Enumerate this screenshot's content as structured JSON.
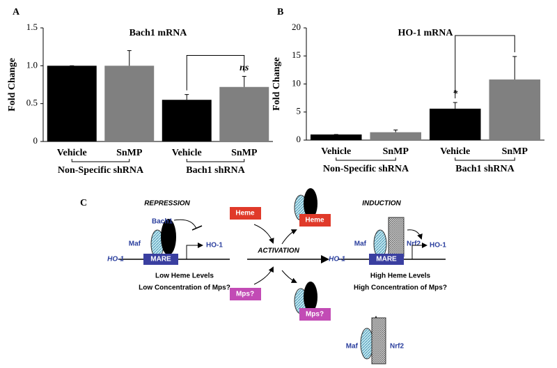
{
  "chart_data": [
    {
      "type": "bar",
      "panel": "A",
      "title": "Bach1 mRNA",
      "y_label": "Fold Change",
      "categories": [
        "Vehicle",
        "SnMP",
        "Vehicle",
        "SnMP"
      ],
      "groups": [
        "Non-Specific shRNA",
        "Bach1 shRNA"
      ],
      "values": [
        1.0,
        1.0,
        0.55,
        0.72
      ],
      "errors": [
        0,
        0.2,
        0.07,
        0.14
      ],
      "colors": [
        "#000000",
        "#808080",
        "#000000",
        "#808080"
      ],
      "annotation": "ns",
      "ylim": [
        0,
        1.5
      ],
      "yticks": [
        0,
        0.5,
        {
          "value": 1,
          "label": "1.0"
        },
        1.5
      ]
    },
    {
      "type": "bar",
      "panel": "B",
      "title": "HO-1 mRNA",
      "y_label": "Fold Change",
      "categories": [
        "Vehicle",
        "SnMP",
        "Vehicle",
        "SnMP"
      ],
      "groups": [
        "Non-Specific shRNA",
        "Bach1 shRNA"
      ],
      "values": [
        1.0,
        1.4,
        5.6,
        10.8
      ],
      "errors": [
        0,
        0.4,
        1.1,
        4.1
      ],
      "colors": [
        "#000000",
        "#808080",
        "#000000",
        "#808080"
      ],
      "annotation": "*",
      "ylim": [
        0,
        20
      ],
      "yticks": [
        0,
        5,
        10,
        15,
        20
      ]
    }
  ],
  "diagram": {
    "panel": "C",
    "repression": {
      "title": "REPRESSION",
      "bach1": "Bach1",
      "maf": "Maf",
      "target": "HO-1",
      "gene": "HO-1",
      "element": "MARE",
      "note1": "Low Heme Levels",
      "note2": "Low Concentration of Mps?"
    },
    "activation": {
      "label": "ACTIVATION",
      "heme": "Heme",
      "mps": "Mps?",
      "heme_bound": "Heme",
      "mps_bound": "Mps?"
    },
    "induction": {
      "title": "INDUCTION",
      "maf": "Maf",
      "nrf2": "Nrf2",
      "target": "HO-1",
      "gene": "HO-1",
      "element": "MARE",
      "note1": "High Heme Levels",
      "note2": "High Concentration of Mps?",
      "free_maf": "Maf",
      "free_nrf2": "Nrf2"
    }
  }
}
